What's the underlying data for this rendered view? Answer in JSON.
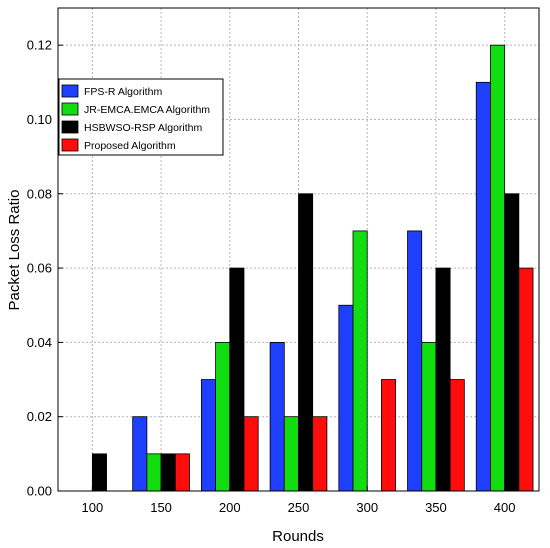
{
  "chart_data": {
    "type": "bar",
    "xlabel": "Rounds",
    "ylabel": "Packet Loss Ratio",
    "categories": [
      "100",
      "150",
      "200",
      "250",
      "300",
      "350",
      "400"
    ],
    "ylim": [
      0,
      0.13
    ],
    "yticks": [
      "0.00",
      "0.02",
      "0.04",
      "0.06",
      "0.08",
      "0.10",
      "0.12"
    ],
    "grid": true,
    "legend_position": "top-left",
    "series": [
      {
        "name": "FPS-R Algorithm",
        "color": "#1f3fff",
        "values": [
          0.0,
          0.02,
          0.03,
          0.04,
          0.05,
          0.07,
          0.11
        ]
      },
      {
        "name": "JR-EMCA.EMCA Algorithm",
        "color": "#11dd11",
        "values": [
          0.0,
          0.01,
          0.04,
          0.02,
          0.07,
          0.04,
          0.12
        ]
      },
      {
        "name": "HSBWSO-RSP Algorithm",
        "color": "#000000",
        "values": [
          0.01,
          0.01,
          0.06,
          0.08,
          0.0,
          0.06,
          0.08
        ]
      },
      {
        "name": "Proposed Algorithm",
        "color": "#ff0d0d",
        "values": [
          0.0,
          0.01,
          0.02,
          0.02,
          0.03,
          0.03,
          0.06
        ]
      }
    ]
  }
}
